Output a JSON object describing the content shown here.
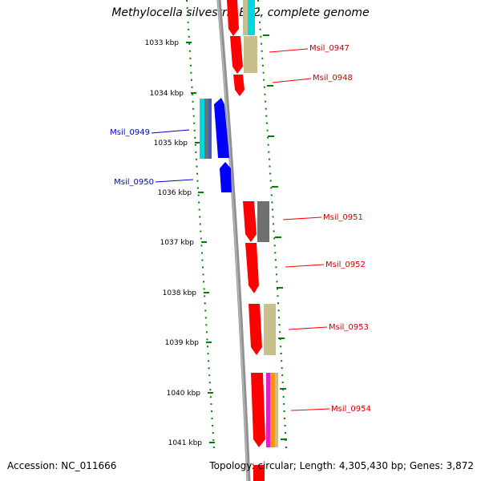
{
  "title": "Methylocella silvestris BL2, complete genome",
  "footer": {
    "accession": "Accession: NC_011666",
    "summary": "Topology: circular; Length: 4,305,430 bp; Genes: 3,872"
  },
  "ticks": [
    {
      "label": "1033 kbp"
    },
    {
      "label": "1034 kbp"
    },
    {
      "label": "1035 kbp"
    },
    {
      "label": "1036 kbp"
    },
    {
      "label": "1037 kbp"
    },
    {
      "label": "1038 kbp"
    },
    {
      "label": "1039 kbp"
    },
    {
      "label": "1040 kbp"
    },
    {
      "label": "1041 kbp"
    }
  ],
  "genes": [
    {
      "name": "Msil_0947",
      "strand": "forward"
    },
    {
      "name": "Msil_0948",
      "strand": "forward"
    },
    {
      "name": "Msil_0949",
      "strand": "reverse"
    },
    {
      "name": "Msil_0950",
      "strand": "reverse"
    },
    {
      "name": "Msil_0951",
      "strand": "forward"
    },
    {
      "name": "Msil_0952",
      "strand": "forward"
    },
    {
      "name": "Msil_0953",
      "strand": "forward"
    },
    {
      "name": "Msil_0954",
      "strand": "forward"
    }
  ],
  "colors": {
    "forward": "#ff0000",
    "reverse": "#0000ff",
    "backbone": "#808080",
    "tick": "#008000",
    "khaki": "#c8c08a",
    "gray": "#707070",
    "cyan": "#00d8e0",
    "magenta": "#e020c0",
    "orange": "#ff9020"
  }
}
